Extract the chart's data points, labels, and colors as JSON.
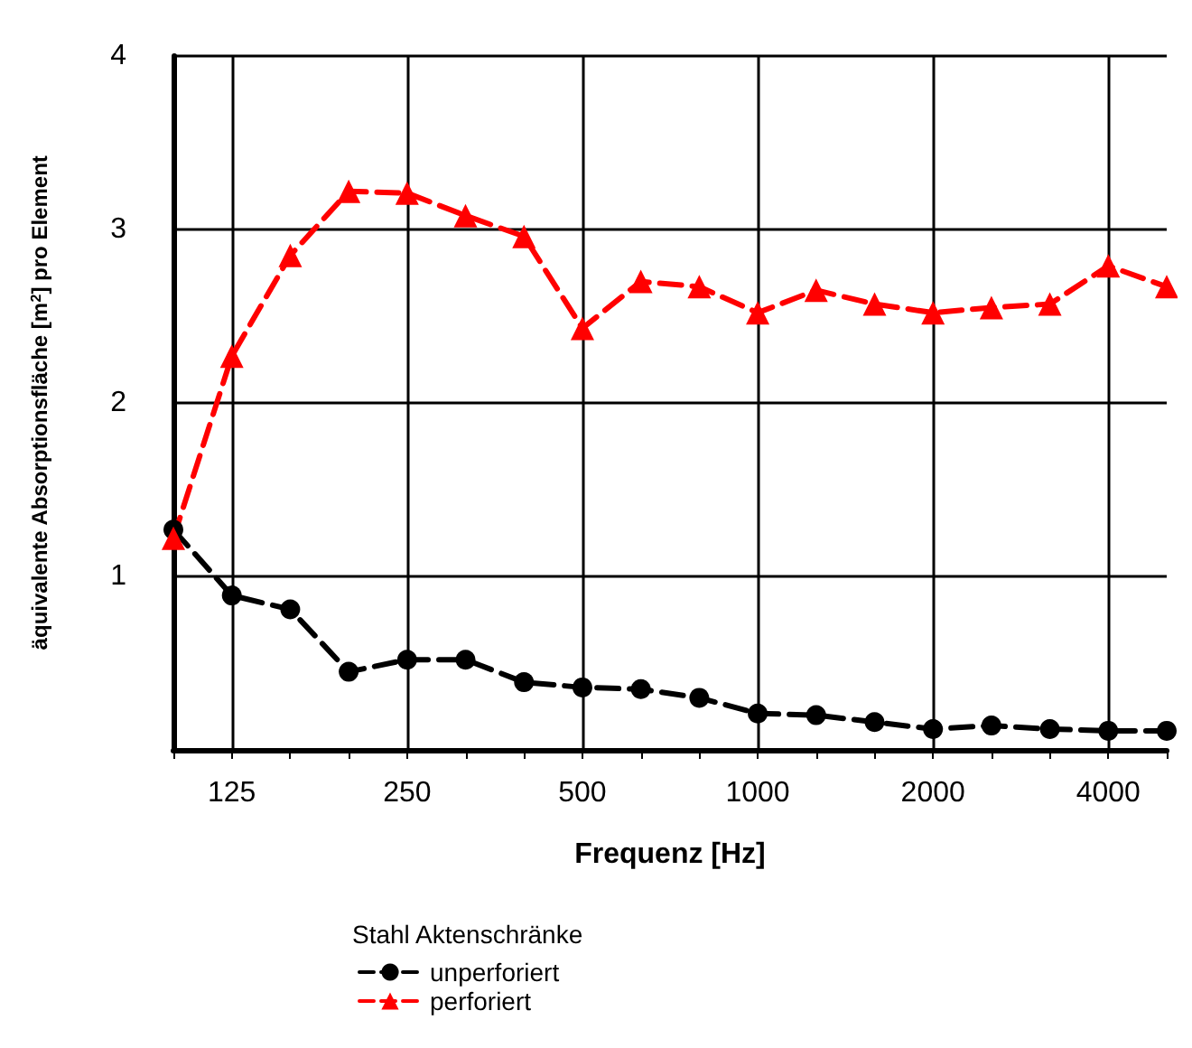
{
  "chart_data": {
    "type": "line",
    "xlabel": "Frequenz [Hz]",
    "ylabel": "äquivalente Absorptionsfläche [m$^{2}$] pro Element",
    "legend_title": "Stahl Aktenschränke",
    "categories": [
      null,
      "125",
      null,
      null,
      "250",
      null,
      null,
      "500",
      null,
      null,
      "1000",
      null,
      null,
      "2000",
      null,
      null,
      "4000",
      null
    ],
    "series": [
      {
        "name": "unperforiert",
        "color": "#000000",
        "marker": "circle",
        "values": [
          1.27,
          0.89,
          0.81,
          0.45,
          0.52,
          0.52,
          0.39,
          0.36,
          0.35,
          0.3,
          0.21,
          0.2,
          0.16,
          0.12,
          0.14,
          0.12,
          0.11,
          0.11
        ]
      },
      {
        "name": "perforiert",
        "color": "#ff0000",
        "marker": "triangle",
        "values": [
          1.22,
          2.27,
          2.85,
          3.22,
          3.21,
          3.08,
          2.96,
          2.43,
          2.7,
          2.67,
          2.52,
          2.65,
          2.57,
          2.52,
          2.55,
          2.57,
          2.79,
          2.67
        ]
      }
    ],
    "ylim": [
      0,
      4
    ],
    "yticks": [
      {
        "value": 0,
        "label": null
      },
      1,
      2,
      3,
      4
    ],
    "grid": true,
    "legend": "bottom",
    "line_style": "dashed"
  }
}
